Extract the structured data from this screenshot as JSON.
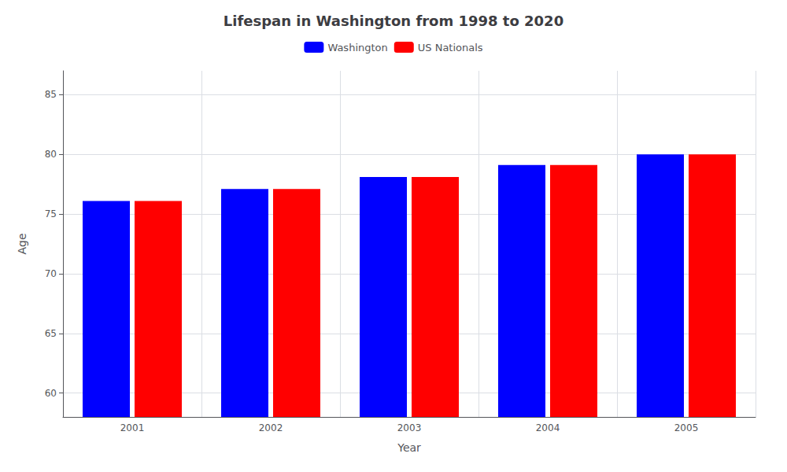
{
  "chart_data": {
    "type": "bar",
    "title": "Lifespan in Washington from 1998 to 2020",
    "x_label": "Year",
    "y_label": "Age",
    "categories": [
      "2001",
      "2002",
      "2003",
      "2004",
      "2005"
    ],
    "series": [
      {
        "name": "Washington",
        "color": "#0000ff",
        "values": [
          76.1,
          77.1,
          78.1,
          79.1,
          80.0
        ]
      },
      {
        "name": "US Nationals",
        "color": "#ff0000",
        "values": [
          76.1,
          77.1,
          78.1,
          79.1,
          80.0
        ]
      }
    ],
    "ylim": [
      58,
      87
    ],
    "yticks": [
      60,
      65,
      70,
      75,
      80,
      85
    ],
    "grid": true,
    "legend": "top"
  }
}
